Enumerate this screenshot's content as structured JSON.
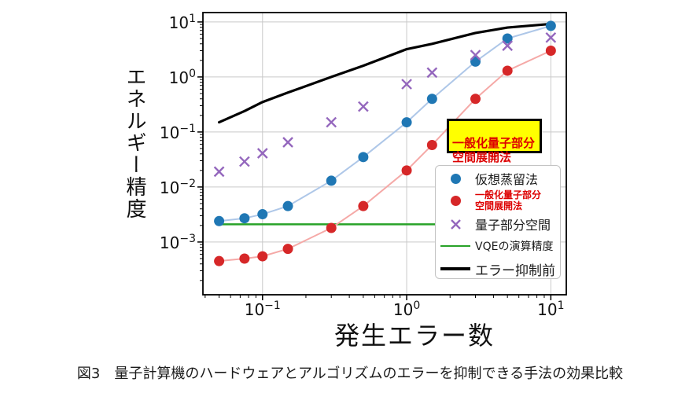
{
  "figure": {
    "caption": "図3　量子計算機のハードウェアとアルゴリズムのエラーを抑制できる手法の効果比較"
  },
  "axes": {
    "x_label": "発生エラー数",
    "y_label": "エネルギー精度",
    "x_tick_labels": [
      "10⁻¹",
      "10⁰",
      "10¹"
    ],
    "y_tick_labels": [
      "10¹",
      "10⁰",
      "10⁻¹",
      "10⁻²",
      "10⁻³"
    ]
  },
  "annotation": {
    "text": "一般化量子部分\n空間展開法",
    "bg_color": "#ffff00",
    "text_color": "#dd0000",
    "border_color": "#000000"
  },
  "legend": {
    "items": [
      {
        "label": "仮想蒸留法",
        "marker": "circle",
        "color": "#1f77b4"
      },
      {
        "label": "一般化量子部分\n空間展開法",
        "marker": "circle",
        "color": "#d62728",
        "label_color": "#dd0000"
      },
      {
        "label": "量子部分空間",
        "marker": "x",
        "color": "#9467bd"
      },
      {
        "label": "VQEの演算精度",
        "marker": "line",
        "color": "#28a228"
      },
      {
        "label": "エラー抑制前",
        "marker": "line",
        "color": "#000000"
      }
    ]
  },
  "chart_data": {
    "type": "line",
    "title": "",
    "xlabel": "発生エラー数",
    "ylabel": "エネルギー精度",
    "x_scale": "log",
    "y_scale": "log",
    "xlim": [
      0.0386,
      12.8
    ],
    "ylim": [
      0.00011,
      14.8
    ],
    "grid": true,
    "grid_color": "#c9c9c9",
    "x_tick_exponents": [
      -1,
      0,
      1
    ],
    "y_tick_exponents": [
      1,
      0,
      -1,
      -2,
      -3
    ],
    "x": [
      0.05,
      0.075,
      0.1,
      0.15,
      0.3,
      0.5,
      1.0,
      1.5,
      3.0,
      5.0,
      10.0
    ],
    "series": [
      {
        "id": "vqe-precision",
        "name": "VQEの演算精度",
        "type": "hline",
        "y_value": 0.0021,
        "x_range": [
          0.05,
          7.0
        ],
        "line_color": "#28a228",
        "line_width": 2.5
      },
      {
        "id": "before-error-suppression",
        "name": "エラー抑制前",
        "type": "line",
        "line_color": "#000000",
        "line_width": 3.2,
        "y": [
          0.15,
          0.24,
          0.35,
          0.52,
          1.0,
          1.6,
          3.2,
          4.0,
          6.3,
          7.9,
          9.2
        ]
      },
      {
        "id": "generalized-quantum-subspace-expansion",
        "name": "一般化量子部分空間展開法",
        "type": "line+marker",
        "marker": "circle",
        "marker_color": "#d62728",
        "line_color": "#f5a9a7",
        "line_width": 2,
        "y": [
          0.00045,
          0.0005,
          0.00055,
          0.00075,
          0.0018,
          0.0045,
          0.02,
          0.058,
          0.4,
          1.3,
          3.0
        ]
      },
      {
        "id": "virtual-distillation",
        "name": "仮想蒸留法",
        "type": "line+marker",
        "marker": "circle",
        "marker_color": "#1f77b4",
        "line_color": "#aec7e8",
        "line_width": 2,
        "y": [
          0.0024,
          0.0027,
          0.0032,
          0.0045,
          0.013,
          0.035,
          0.15,
          0.4,
          1.9,
          5.0,
          8.5
        ]
      },
      {
        "id": "quantum-subspace",
        "name": "量子部分空間",
        "type": "marker",
        "marker": "x",
        "marker_color": "#9467bd",
        "y": [
          0.019,
          0.029,
          0.041,
          0.065,
          0.15,
          0.29,
          0.74,
          1.2,
          2.5,
          3.7,
          5.2
        ]
      }
    ]
  }
}
